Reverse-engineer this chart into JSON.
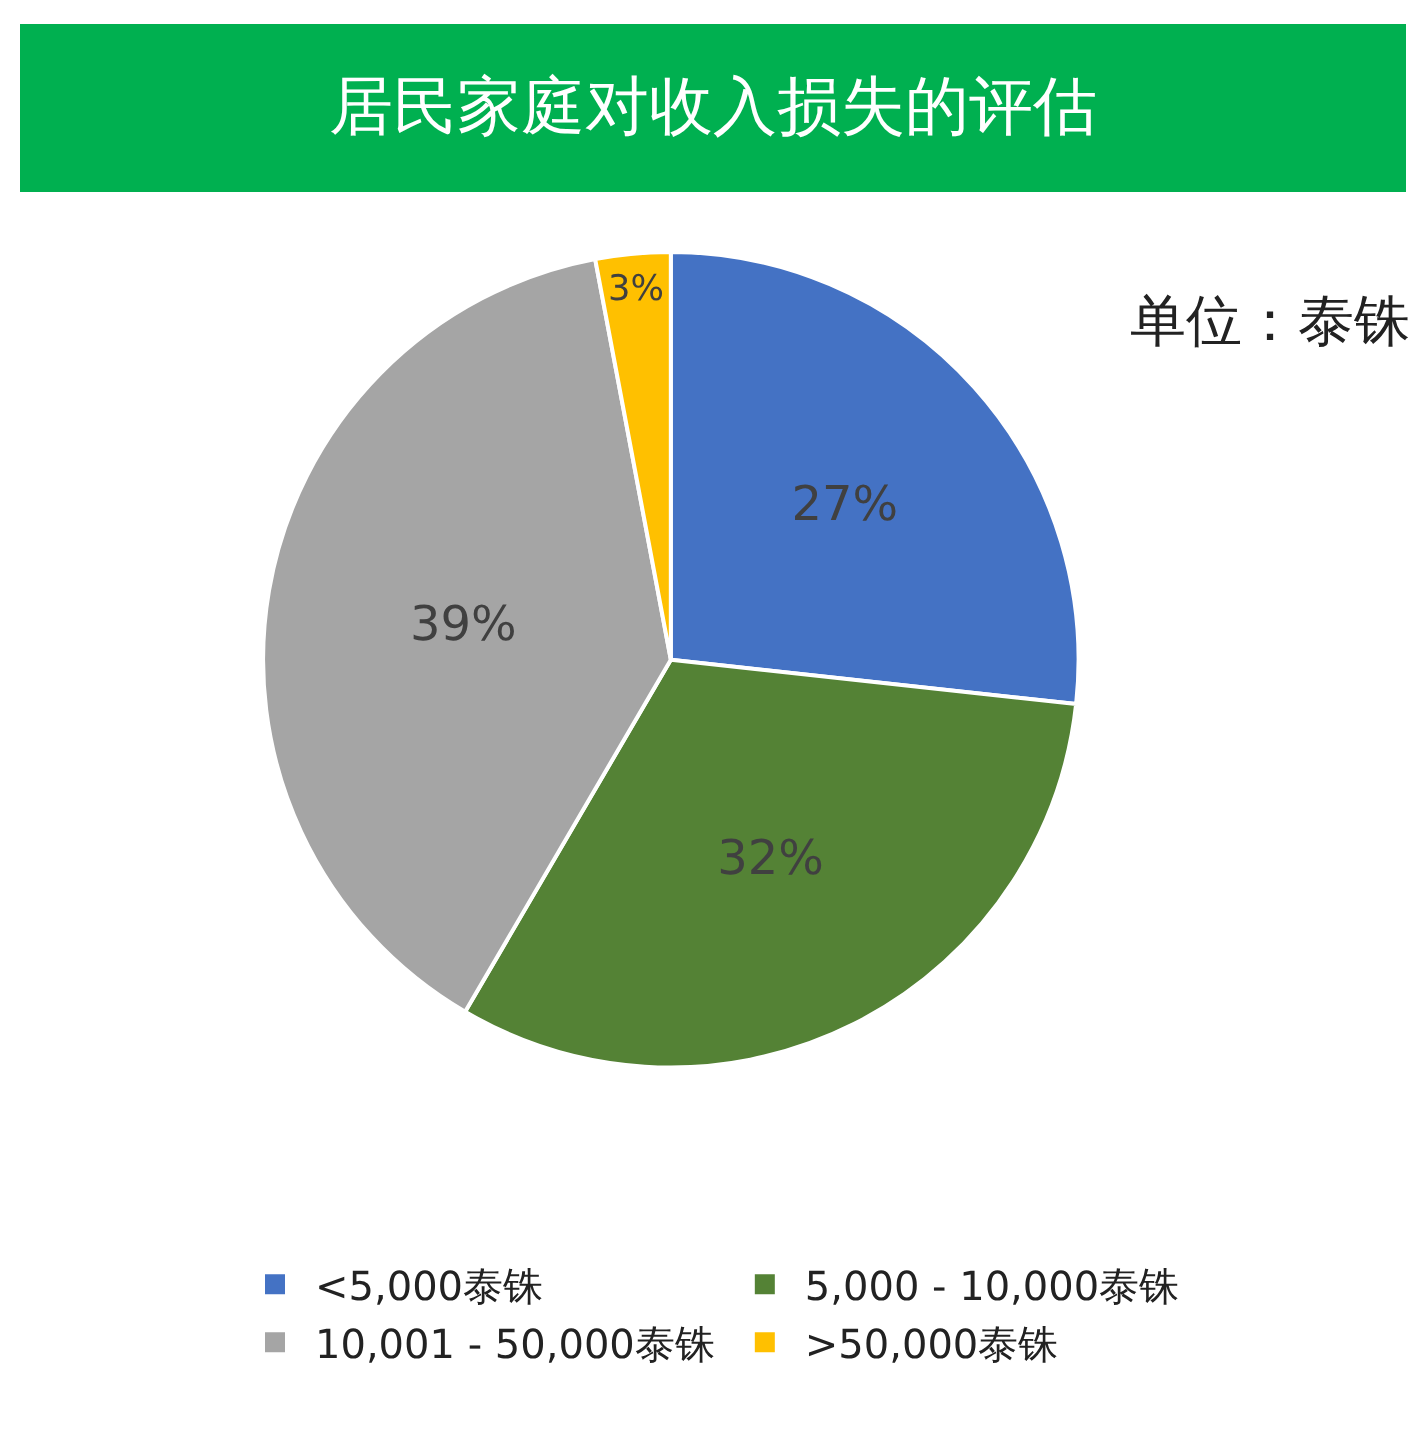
{
  "chart_data": {
    "type": "pie",
    "title": "居民家庭对收入损失的评估",
    "annotations": [
      "单位：泰铢"
    ],
    "categories": [
      "<5,000泰铢",
      "5,000 - 10,000泰铢",
      "10,001 - 50,000泰铢",
      ">50,000泰铢"
    ],
    "values": [
      27,
      32,
      39,
      3
    ],
    "colors": [
      "#4472c4",
      "#548235",
      "#a5a5a5",
      "#ffc000"
    ],
    "value_labels": [
      "27%",
      "32%",
      "39%",
      "3%"
    ],
    "legend": "bottom"
  }
}
